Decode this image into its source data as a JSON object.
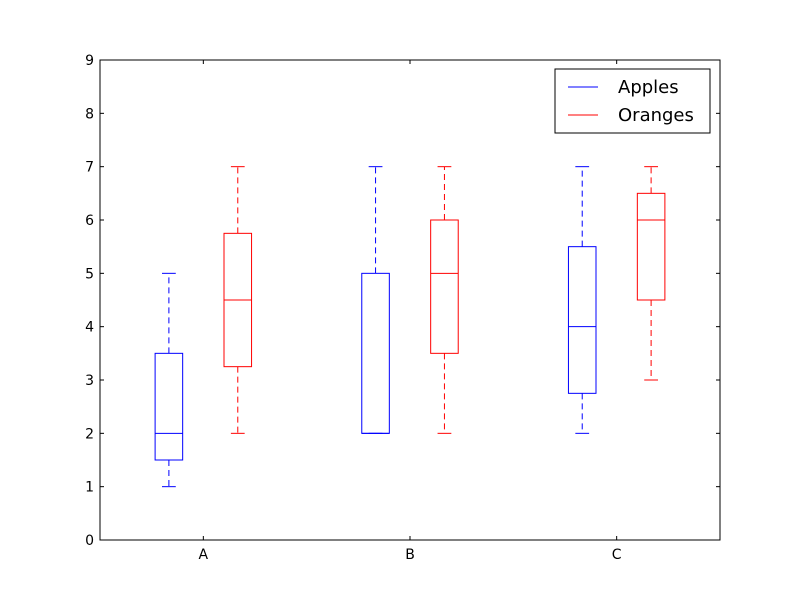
{
  "chart_data": {
    "type": "box",
    "title": "",
    "xlabel": "",
    "ylabel": "",
    "categories": [
      "A",
      "B",
      "C"
    ],
    "ylim": [
      0,
      9
    ],
    "yticks": [
      "0",
      "1",
      "2",
      "3",
      "4",
      "5",
      "6",
      "7",
      "8",
      "9"
    ],
    "grid": false,
    "legend": {
      "position": "top-right"
    },
    "series": [
      {
        "name": "Apples",
        "color": "#0000ff",
        "boxes": [
          {
            "whisker_low": 1,
            "q1": 1.5,
            "median": 2,
            "q3": 3.5,
            "whisker_high": 5
          },
          {
            "whisker_low": 2,
            "q1": 2,
            "median": 2,
            "q3": 5,
            "whisker_high": 7
          },
          {
            "whisker_low": 2,
            "q1": 2.75,
            "median": 4,
            "q3": 5.5,
            "whisker_high": 7
          }
        ]
      },
      {
        "name": "Oranges",
        "color": "#ff0000",
        "boxes": [
          {
            "whisker_low": 2,
            "q1": 3.25,
            "median": 4.5,
            "q3": 5.75,
            "whisker_high": 7
          },
          {
            "whisker_low": 2,
            "q1": 3.5,
            "median": 5,
            "q3": 6,
            "whisker_high": 7
          },
          {
            "whisker_low": 3,
            "q1": 4.5,
            "median": 6,
            "q3": 6.5,
            "whisker_high": 7
          }
        ]
      }
    ]
  }
}
